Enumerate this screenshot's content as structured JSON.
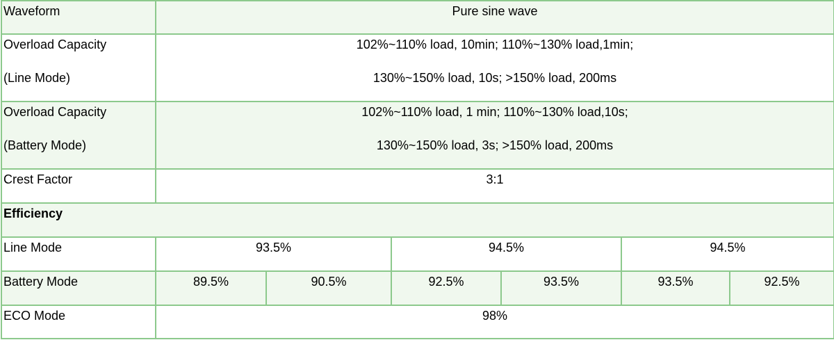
{
  "rows": {
    "waveform": {
      "label": "Waveform",
      "value": "Pure sine wave"
    },
    "overload_line": {
      "label_1": "Overload Capacity",
      "label_2": "(Line Mode)",
      "value_1": "102%~110% load, 10min; 110%~130% load,1min;",
      "value_2": "130%~150% load, 10s; >150% load, 200ms"
    },
    "overload_battery": {
      "label_1": "Overload Capacity",
      "label_2": "(Battery Mode)",
      "value_1": "102%~110% load, 1 min; 110%~130% load,10s;",
      "value_2": "130%~150% load, 3s; >150% load, 200ms"
    },
    "crest_factor": {
      "label": "Crest Factor",
      "value": "3:1"
    },
    "efficiency": {
      "label": "Efficiency"
    },
    "line_mode": {
      "label": "Line Mode",
      "values": [
        "93.5%",
        "94.5%",
        "94.5%"
      ]
    },
    "battery_mode": {
      "label": "Battery Mode",
      "values": [
        "89.5%",
        "90.5%",
        "92.5%",
        "93.5%",
        "93.5%",
        "92.5%"
      ]
    },
    "eco_mode": {
      "label": "ECO Mode",
      "value": "98%"
    }
  },
  "colors": {
    "border": "#8cc98c",
    "shade": "#f0f8ee"
  }
}
